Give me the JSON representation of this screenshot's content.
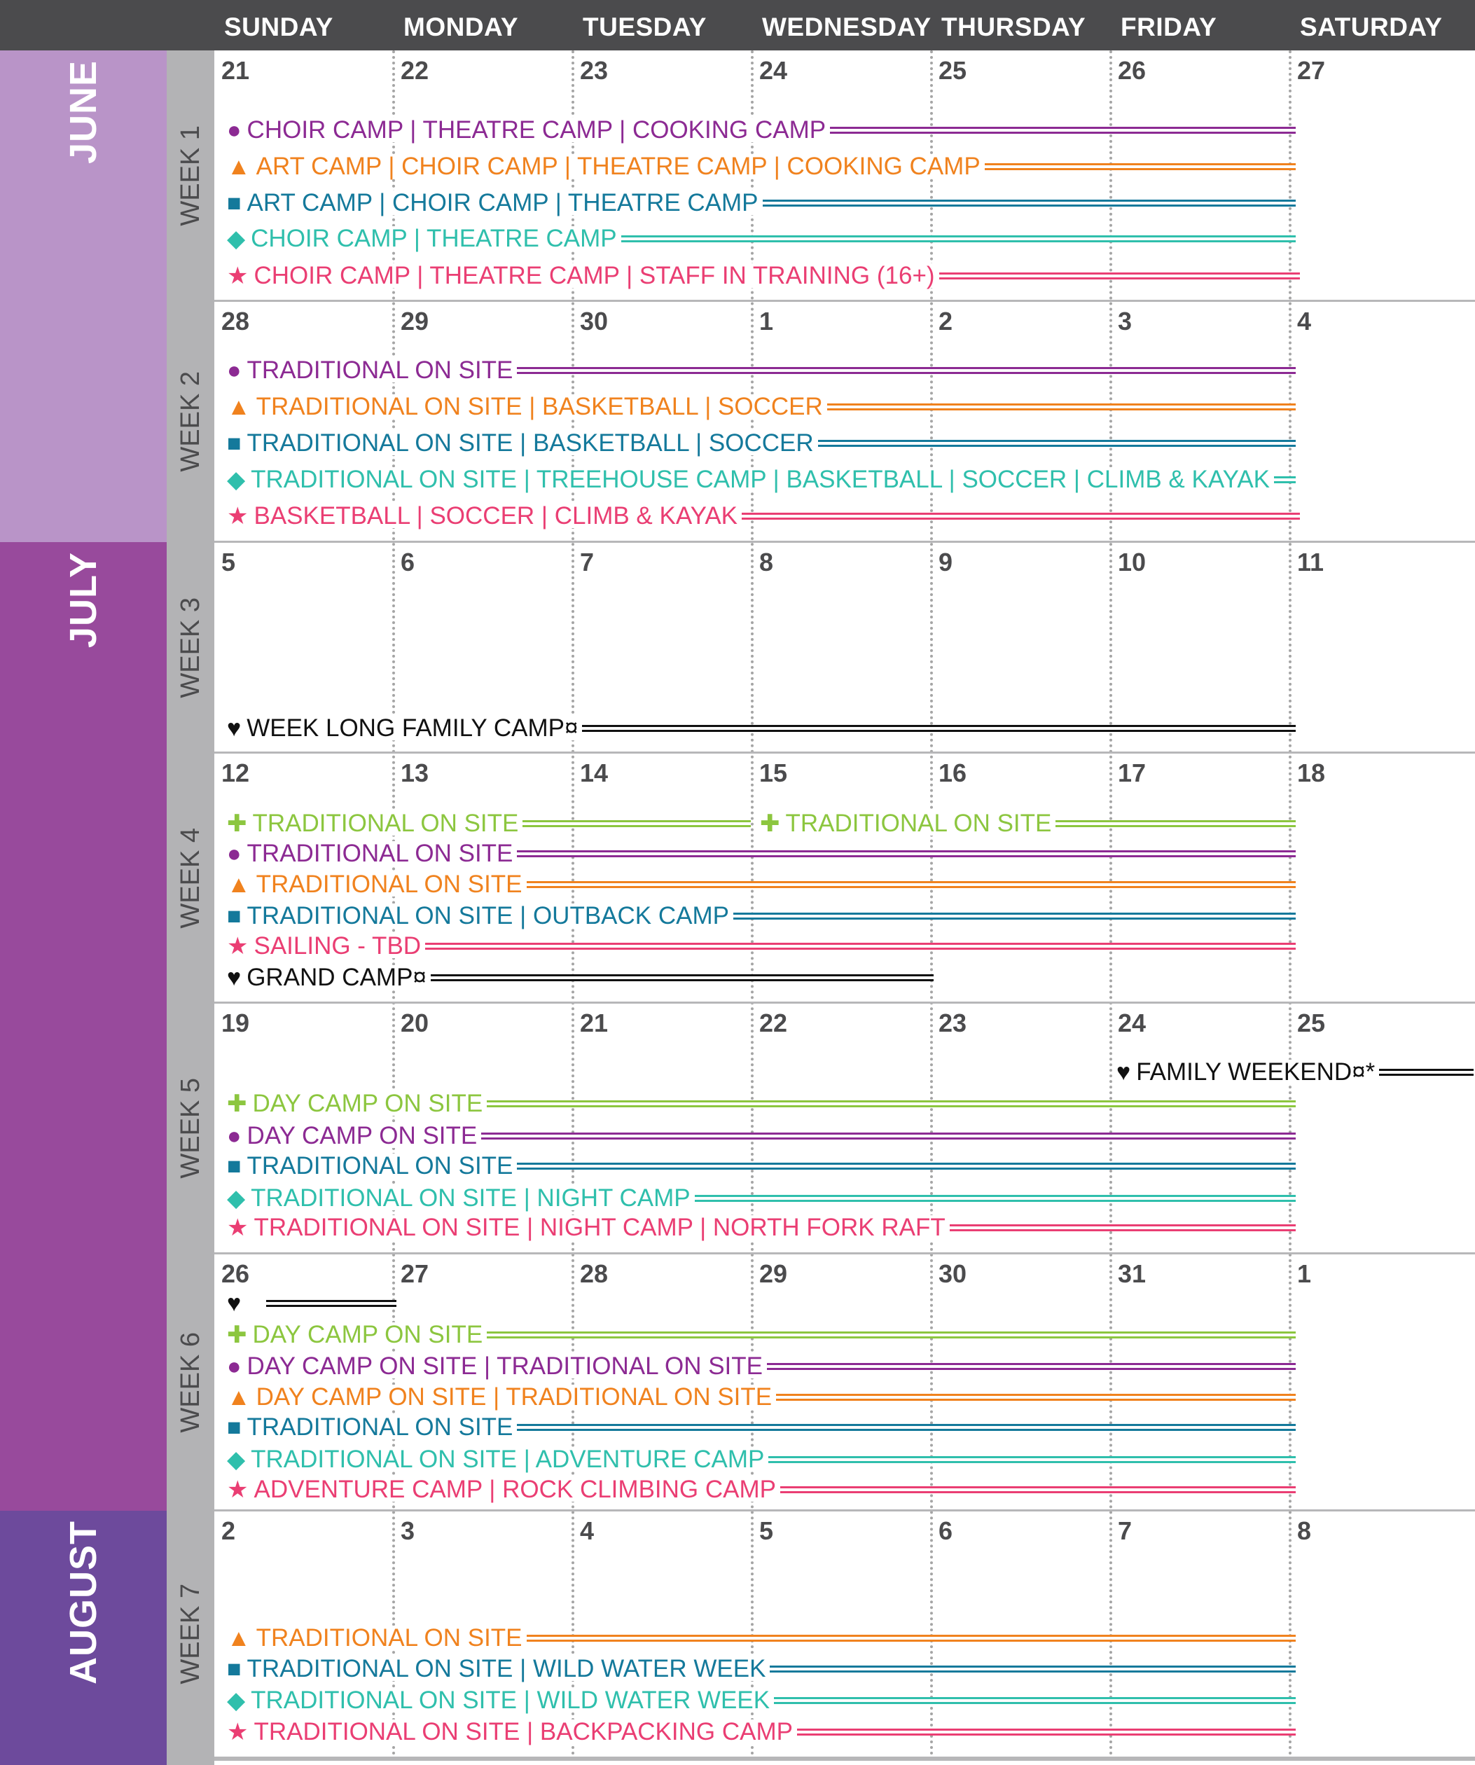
{
  "days": [
    "SUNDAY",
    "MONDAY",
    "TUESDAY",
    "WEDNESDAY",
    "THURSDAY",
    "FRIDAY",
    "SATURDAY"
  ],
  "months": [
    {
      "label": "JUNE",
      "color": "#b994c8"
    },
    {
      "label": "JULY",
      "color": "#984a9c"
    },
    {
      "label": "AUGUST",
      "color": "#6d4a9c"
    }
  ],
  "colors": {
    "purple": "#8c2a93",
    "orange": "#f0821e",
    "blue": "#14799b",
    "teal": "#2fbfac",
    "pink": "#ea3e73",
    "green": "#8cc63f",
    "black": "#111111"
  },
  "symbols": {
    "circle": "●",
    "triangle": "▲",
    "square": "■",
    "diamond": "◆",
    "star": "★",
    "cross": "✚",
    "heart": "♥"
  },
  "weeks": [
    {
      "label": "WEEK 1",
      "dates": [
        "21",
        "22",
        "23",
        "24",
        "25",
        "26",
        "27"
      ],
      "activities": [
        {
          "symbol": "circle",
          "color": "purple",
          "text": "CHOIR CAMP | THEATRE CAMP | COOKING CAMP"
        },
        {
          "symbol": "triangle",
          "color": "orange",
          "text": "ART CAMP | CHOIR CAMP | THEATRE CAMP | COOKING CAMP"
        },
        {
          "symbol": "square",
          "color": "blue",
          "text": "ART CAMP | CHOIR CAMP | THEATRE CAMP"
        },
        {
          "symbol": "diamond",
          "color": "teal",
          "text": "CHOIR CAMP | THEATRE CAMP"
        },
        {
          "symbol": "star",
          "color": "pink",
          "text": "CHOIR CAMP | THEATRE CAMP | STAFF IN TRAINING (16+)"
        }
      ]
    },
    {
      "label": "WEEK 2",
      "dates": [
        "28",
        "29",
        "30",
        "1",
        "2",
        "3",
        "4"
      ],
      "activities": [
        {
          "symbol": "circle",
          "color": "purple",
          "text": "TRADITIONAL ON SITE"
        },
        {
          "symbol": "triangle",
          "color": "orange",
          "text": "TRADITIONAL ON SITE | BASKETBALL | SOCCER"
        },
        {
          "symbol": "square",
          "color": "blue",
          "text": "TRADITIONAL ON SITE | BASKETBALL | SOCCER"
        },
        {
          "symbol": "diamond",
          "color": "teal",
          "text": "TRADITIONAL ON SITE | TREEHOUSE CAMP | BASKETBALL | SOCCER | CLIMB & KAYAK"
        },
        {
          "symbol": "star",
          "color": "pink",
          "text": "BASKETBALL | SOCCER | CLIMB & KAYAK"
        }
      ]
    },
    {
      "label": "WEEK 3",
      "dates": [
        "5",
        "6",
        "7",
        "8",
        "9",
        "10",
        "11"
      ],
      "activities": [
        {
          "symbol": "heart",
          "color": "black",
          "text": "WEEK LONG FAMILY CAMP¤"
        }
      ]
    },
    {
      "label": "WEEK 4",
      "dates": [
        "12",
        "13",
        "14",
        "15",
        "16",
        "17",
        "18"
      ],
      "activities": [
        {
          "symbol": "cross",
          "color": "green",
          "text": "TRADITIONAL ON SITE"
        },
        {
          "symbol": "cross",
          "color": "green",
          "text": "TRADITIONAL ON SITE"
        },
        {
          "symbol": "circle",
          "color": "purple",
          "text": "TRADITIONAL ON SITE"
        },
        {
          "symbol": "triangle",
          "color": "orange",
          "text": "TRADITIONAL ON SITE"
        },
        {
          "symbol": "square",
          "color": "blue",
          "text": "TRADITIONAL ON SITE | OUTBACK CAMP"
        },
        {
          "symbol": "star",
          "color": "pink",
          "text": "SAILING - TBD"
        },
        {
          "symbol": "heart",
          "color": "black",
          "text": "GRAND CAMP¤"
        }
      ]
    },
    {
      "label": "WEEK 5",
      "dates": [
        "19",
        "20",
        "21",
        "22",
        "23",
        "24",
        "25"
      ],
      "activities": [
        {
          "symbol": "heart",
          "color": "black",
          "text": "FAMILY WEEKEND¤*"
        },
        {
          "symbol": "cross",
          "color": "green",
          "text": "DAY CAMP ON SITE"
        },
        {
          "symbol": "circle",
          "color": "purple",
          "text": "DAY CAMP ON SITE"
        },
        {
          "symbol": "square",
          "color": "blue",
          "text": "TRADITIONAL ON SITE"
        },
        {
          "symbol": "diamond",
          "color": "teal",
          "text": "TRADITIONAL ON SITE | NIGHT CAMP"
        },
        {
          "symbol": "star",
          "color": "pink",
          "text": "TRADITIONAL ON SITE | NIGHT CAMP | NORTH FORK RAFT"
        }
      ]
    },
    {
      "label": "WEEK 6",
      "dates": [
        "26",
        "27",
        "28",
        "29",
        "30",
        "31",
        "1"
      ],
      "activities": [
        {
          "symbol": "heart",
          "color": "black",
          "text": ""
        },
        {
          "symbol": "cross",
          "color": "green",
          "text": "DAY CAMP ON SITE"
        },
        {
          "symbol": "circle",
          "color": "purple",
          "text": "DAY CAMP ON SITE | TRADITIONAL ON SITE"
        },
        {
          "symbol": "triangle",
          "color": "orange",
          "text": "DAY CAMP ON SITE | TRADITIONAL ON SITE"
        },
        {
          "symbol": "square",
          "color": "blue",
          "text": "TRADITIONAL ON SITE"
        },
        {
          "symbol": "diamond",
          "color": "teal",
          "text": "TRADITIONAL ON SITE | ADVENTURE CAMP"
        },
        {
          "symbol": "star",
          "color": "pink",
          "text": "ADVENTURE CAMP | ROCK CLIMBING CAMP"
        }
      ]
    },
    {
      "label": "WEEK 7",
      "dates": [
        "2",
        "3",
        "4",
        "5",
        "6",
        "7",
        "8"
      ],
      "activities": [
        {
          "symbol": "triangle",
          "color": "orange",
          "text": "TRADITIONAL ON SITE"
        },
        {
          "symbol": "square",
          "color": "blue",
          "text": "TRADITIONAL ON SITE | WILD WATER WEEK"
        },
        {
          "symbol": "diamond",
          "color": "teal",
          "text": "TRADITIONAL ON SITE | WILD WATER WEEK"
        },
        {
          "symbol": "star",
          "color": "pink",
          "text": "TRADITIONAL ON SITE | BACKPACKING CAMP"
        }
      ]
    }
  ]
}
